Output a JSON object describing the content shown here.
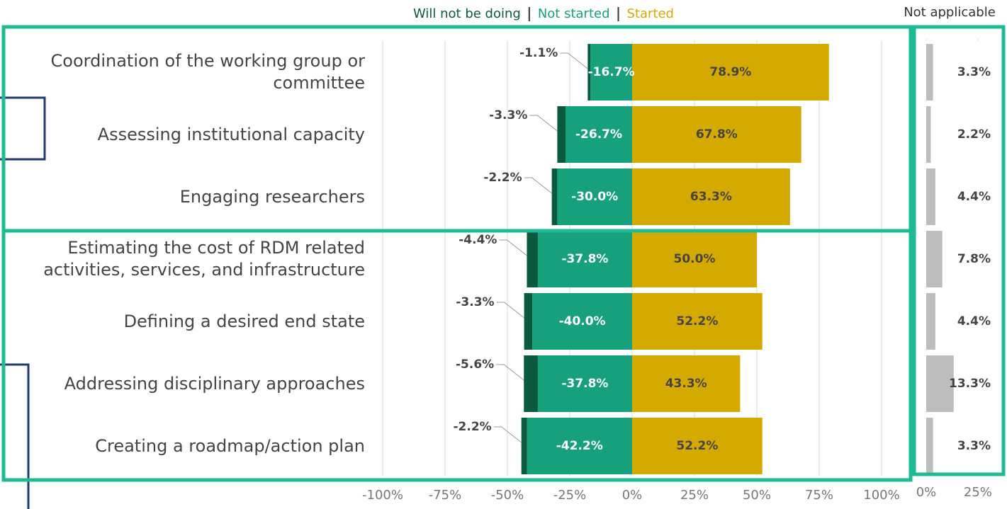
{
  "chart_data": [
    {
      "type": "diverging-bar",
      "categories": [
        "Coordination of the working group or committee",
        "Assessing institutional capacity",
        "Engaging researchers",
        "Estimating the cost of RDM related activities, services, and infrastructure",
        "Defining a desired end state",
        "Addressing disciplinary approaches",
        "Creating a roadmap/action plan"
      ],
      "series": [
        {
          "name": "Will not  be doing",
          "color": "#0b5a40",
          "values": [
            -1.1,
            -3.3,
            -2.2,
            -4.4,
            -3.3,
            -5.6,
            -2.2
          ],
          "value_labels": [
            "-1.1%",
            "-3.3%",
            "-2.2%",
            "-4.4%",
            "-3.3%",
            "-5.6%",
            "-2.2%"
          ]
        },
        {
          "name": "Not started",
          "color": "#16a07c",
          "values": [
            -16.7,
            -26.7,
            -30.0,
            -37.8,
            -40.0,
            -37.8,
            -42.2
          ],
          "value_labels": [
            "-16.7%",
            "-26.7%",
            "-30.0%",
            "-37.8%",
            "-40.0%",
            "-37.8%",
            "-42.2%"
          ]
        },
        {
          "name": "Started",
          "color": "#d4aa00",
          "values": [
            78.9,
            67.8,
            63.3,
            50.0,
            52.2,
            43.3,
            52.2
          ],
          "value_labels": [
            "78.9%",
            "67.8%",
            "63.3%",
            "50.0%",
            "52.2%",
            "43.3%",
            "52.2%"
          ]
        }
      ],
      "xlim": [
        -100,
        100
      ],
      "xticks": [
        {
          "value": -100,
          "label": "-100%"
        },
        {
          "value": -75,
          "label": "-75%"
        },
        {
          "value": -50,
          "label": "-50%"
        },
        {
          "value": -25,
          "label": "-25%"
        },
        {
          "value": 0,
          "label": "0%"
        },
        {
          "value": 25,
          "label": "25%"
        },
        {
          "value": 50,
          "label": "50%"
        },
        {
          "value": 75,
          "label": "75%"
        },
        {
          "value": 100,
          "label": "100%"
        }
      ],
      "grid": true
    },
    {
      "type": "bar",
      "title": "Not applicable",
      "color": "#bdbdbd",
      "values": [
        3.3,
        2.2,
        4.4,
        7.8,
        4.4,
        13.3,
        3.3
      ],
      "value_labels": [
        "3.3%",
        "2.2%",
        "4.4%",
        "7.8%",
        "4.4%",
        "13.3%",
        "3.3%"
      ],
      "xlim": [
        0,
        36
      ],
      "xticks": [
        {
          "value": 0,
          "label": "0%"
        },
        {
          "value": 25,
          "label": "25%"
        }
      ]
    }
  ]
}
